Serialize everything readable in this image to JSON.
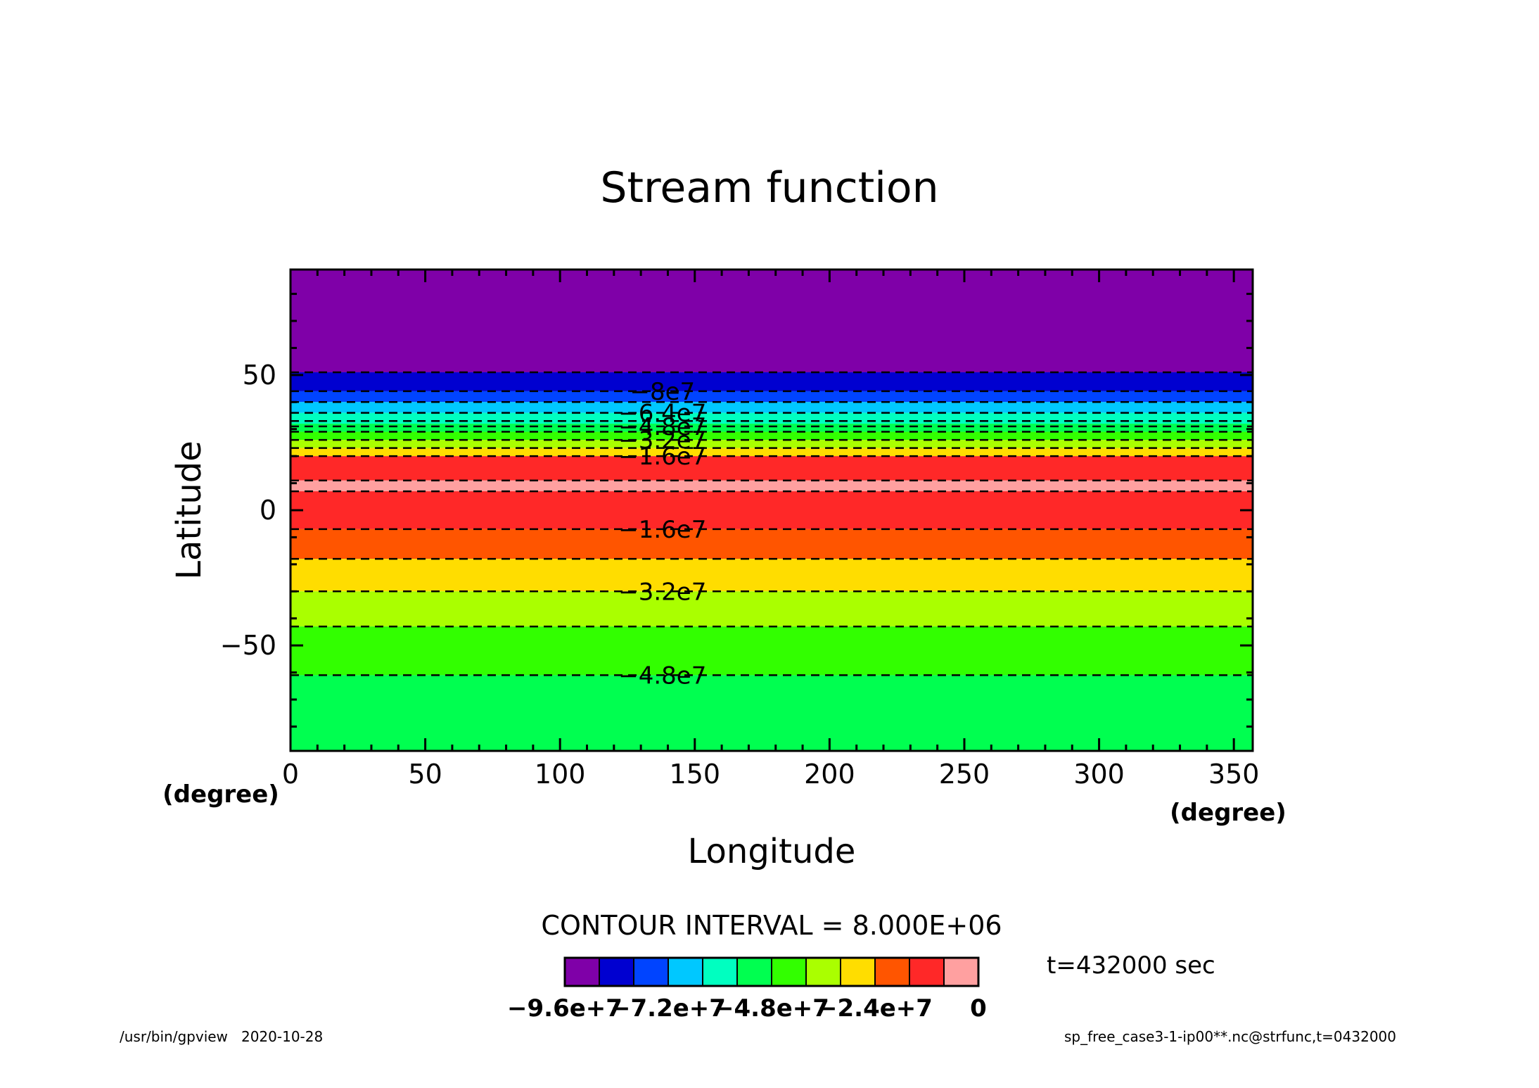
{
  "chart_data": {
    "type": "heatmap",
    "title": "Stream function",
    "xlabel": "Longitude",
    "ylabel": "Latitude",
    "x_unit": "(degree)",
    "y_unit": "(degree)",
    "xlim": [
      0,
      357
    ],
    "ylim": [
      -89,
      89
    ],
    "x_ticks": [
      0,
      50,
      100,
      150,
      200,
      250,
      300,
      350
    ],
    "x_tick_labels": [
      "0",
      "50",
      "100",
      "150",
      "200",
      "250",
      "300",
      "350"
    ],
    "x_minor_step": 10,
    "y_ticks": [
      50,
      0,
      -50
    ],
    "y_tick_labels": [
      "50",
      "0",
      "−50"
    ],
    "y_minor_step": 10,
    "field_note": "zonally uniform field; colored latitude bands",
    "bands": [
      {
        "lat": [
          51,
          89
        ],
        "color": "#7f00a8"
      },
      {
        "lat": [
          44,
          51
        ],
        "color": "#0000d0"
      },
      {
        "lat": [
          40,
          44
        ],
        "color": "#0044ff"
      },
      {
        "lat": [
          36,
          40
        ],
        "color": "#00c8ff"
      },
      {
        "lat": [
          32,
          36
        ],
        "color": "#00ffc0"
      },
      {
        "lat": [
          29,
          32
        ],
        "color": "#00ff50"
      },
      {
        "lat": [
          26,
          29
        ],
        "color": "#32ff00"
      },
      {
        "lat": [
          23,
          26
        ],
        "color": "#aaff00"
      },
      {
        "lat": [
          20,
          23
        ],
        "color": "#ffdd00"
      },
      {
        "lat": [
          11,
          20
        ],
        "color": "#ff2828"
      },
      {
        "lat": [
          7,
          11
        ],
        "color": "#ffa0a0"
      },
      {
        "lat": [
          -7,
          7
        ],
        "color": "#ff2828"
      },
      {
        "lat": [
          -18,
          -7
        ],
        "color": "#ff5500"
      },
      {
        "lat": [
          -30,
          -18
        ],
        "color": "#ffdd00"
      },
      {
        "lat": [
          -43,
          -30
        ],
        "color": "#aaff00"
      },
      {
        "lat": [
          -61,
          -43
        ],
        "color": "#32ff00"
      },
      {
        "lat": [
          -89,
          -61
        ],
        "color": "#00ff50"
      }
    ],
    "contours": [
      {
        "lat": 51,
        "label": ""
      },
      {
        "lat": 44,
        "label": "−8e7"
      },
      {
        "lat": 40,
        "label": ""
      },
      {
        "lat": 36,
        "label": "−6.4e7"
      },
      {
        "lat": 33,
        "label": ""
      },
      {
        "lat": 31,
        "label": "−4.8e7"
      },
      {
        "lat": 29,
        "label": ""
      },
      {
        "lat": 26,
        "label": "−3.2e7"
      },
      {
        "lat": 23,
        "label": ""
      },
      {
        "lat": 20,
        "label": "−1.6e7"
      },
      {
        "lat": 11,
        "label": ""
      },
      {
        "lat": 7,
        "label": ""
      },
      {
        "lat": -7,
        "label": "−1.6e7"
      },
      {
        "lat": -18,
        "label": ""
      },
      {
        "lat": -30,
        "label": "−3.2e7"
      },
      {
        "lat": -43,
        "label": ""
      },
      {
        "lat": -61,
        "label": "−4.8e7"
      }
    ],
    "contour_label_lon": 138,
    "colorbar": {
      "colors": [
        "#7f00a8",
        "#0000d0",
        "#0044ff",
        "#00c8ff",
        "#00ffc0",
        "#00ff50",
        "#32ff00",
        "#aaff00",
        "#ffdd00",
        "#ff5500",
        "#ff2828",
        "#ffa0a0"
      ],
      "tick_labels": [
        "−9.6e+7",
        "−7.2e+7",
        "−4.8e+7",
        "−2.4e+7",
        "0"
      ]
    },
    "annotations": {
      "contour_interval": "CONTOUR INTERVAL = 8.000E+06",
      "time": "t=432000 sec",
      "footer_left": "/usr/bin/gpview   2020-10-28",
      "footer_right": "sp_free_case3-1-ip00**.nc@strfunc,t=0432000"
    }
  }
}
